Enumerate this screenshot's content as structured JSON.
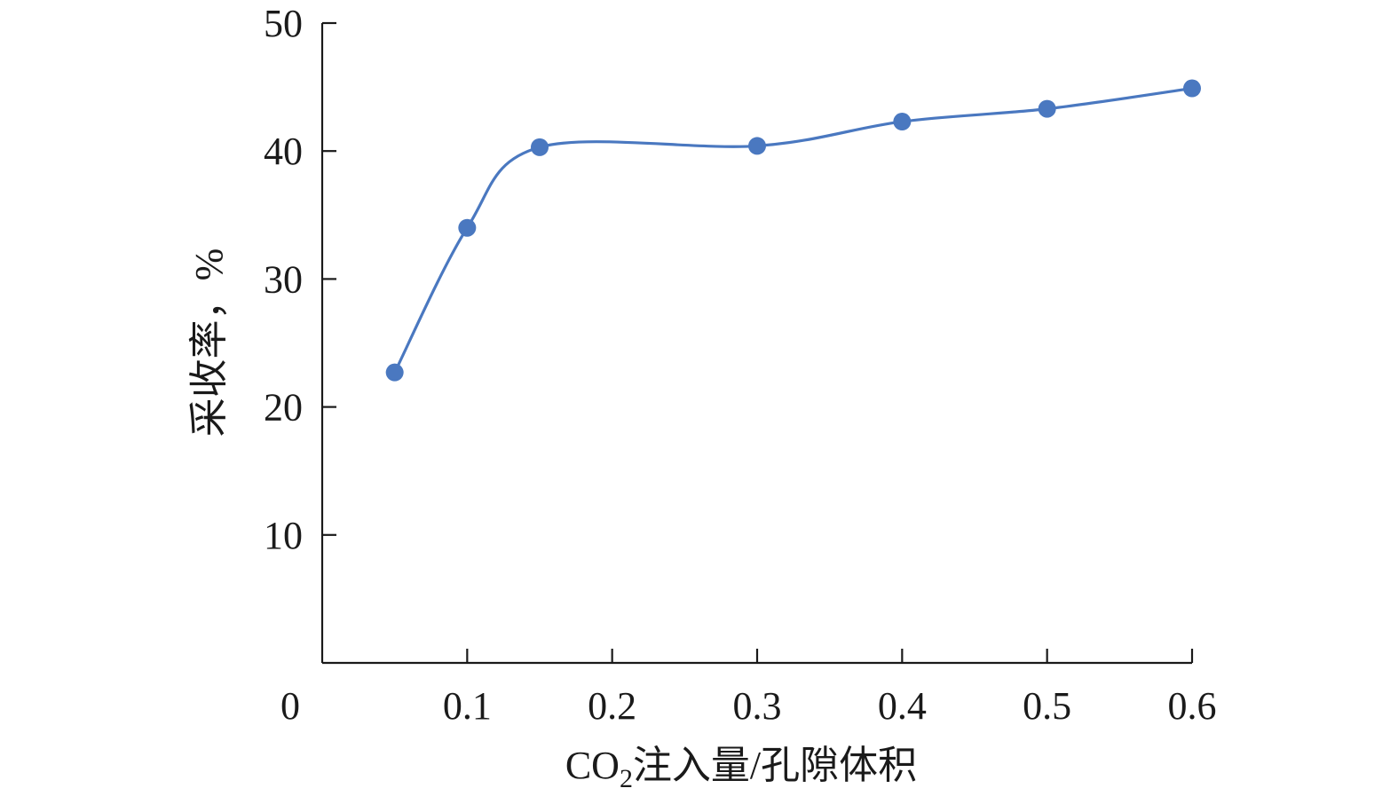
{
  "chart_data": {
    "type": "line",
    "title": "",
    "xlabel": {
      "prefix": "CO",
      "subscript": "2",
      "suffix": "注入量/孔隙体积"
    },
    "ylabel": "采收率，%",
    "origin_label": "0",
    "x_ticks": [
      "0.1",
      "0.2",
      "0.3",
      "0.4",
      "0.5",
      "0.6"
    ],
    "y_ticks": [
      "10",
      "20",
      "30",
      "40",
      "50"
    ],
    "xlim": [
      0,
      0.6
    ],
    "ylim": [
      0,
      50
    ],
    "grid": false,
    "series": [
      {
        "x": [
          0.05,
          0.1,
          0.15,
          0.3,
          0.4,
          0.5,
          0.6
        ],
        "y": [
          22.7,
          34.0,
          40.3,
          40.4,
          42.3,
          43.3,
          44.9
        ],
        "color": "#4a78c0",
        "marker": "circle",
        "smooth": true
      }
    ]
  }
}
